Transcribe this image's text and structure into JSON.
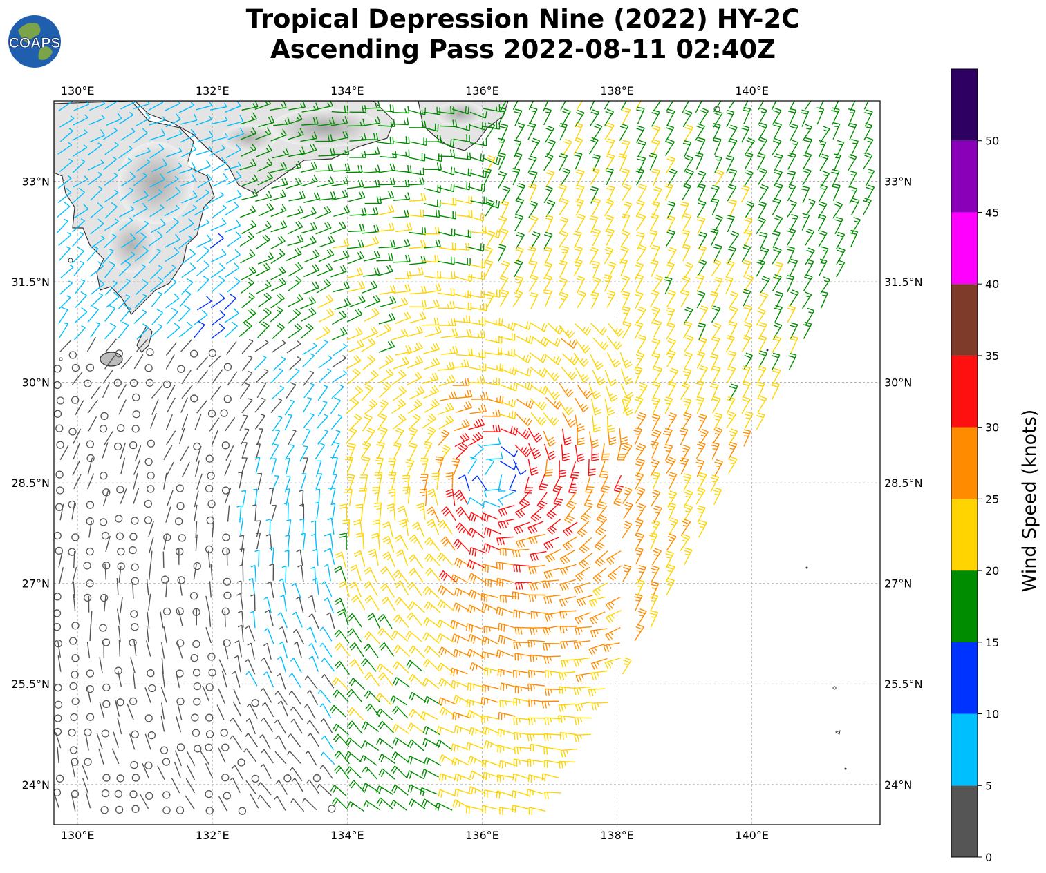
{
  "title": {
    "line1": "Tropical Depression Nine (2022) HY-2C",
    "line2": "Ascending Pass 2022-08-11 02:40Z"
  },
  "logo": {
    "text": "COAPS",
    "colors": {
      "ocean": "#1f5fae",
      "land": "#7ba34a"
    }
  },
  "map": {
    "lon_ticks": [
      "130°E",
      "132°E",
      "134°E",
      "136°E",
      "138°E",
      "140°E"
    ],
    "lat_ticks": [
      "33°N",
      "31.5°N",
      "30°N",
      "28.5°N",
      "27°N",
      "25.5°N",
      "24°N"
    ],
    "lon_range": [
      129.65,
      141.9
    ],
    "lat_range": [
      23.4,
      34.2
    ],
    "grid": true,
    "storm_center": {
      "lon": 136.2,
      "lat": 28.6
    }
  },
  "colorbar": {
    "label": "Wind Speed (knots)",
    "ticks": [
      "0",
      "5",
      "10",
      "15",
      "20",
      "25",
      "30",
      "35",
      "40",
      "45",
      "50"
    ],
    "range": [
      0,
      55
    ],
    "colors": [
      "#555555",
      "#00bfff",
      "#0033ff",
      "#008c00",
      "#ffd400",
      "#ff8c00",
      "#ff1010",
      "#7f3b2a",
      "#ff00ff",
      "#8a00b8",
      "#2e0062"
    ]
  }
}
